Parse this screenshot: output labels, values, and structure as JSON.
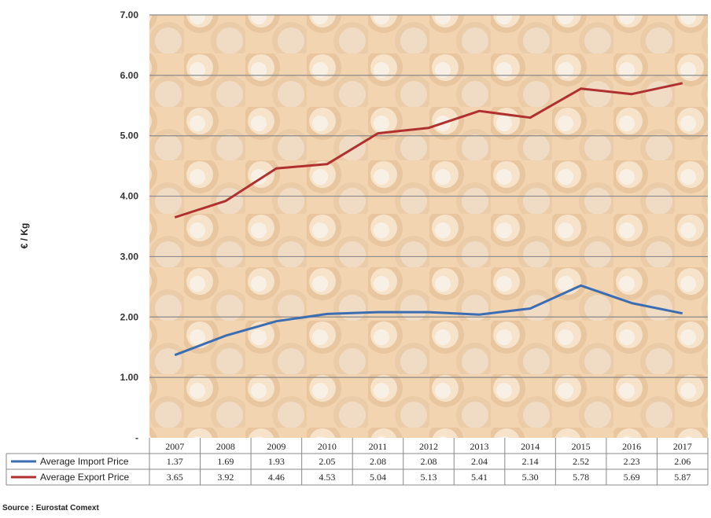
{
  "chart_data": {
    "type": "line",
    "ylabel": "€ / Kg",
    "categories": [
      "2007",
      "2008",
      "2009",
      "2010",
      "2011",
      "2012",
      "2013",
      "2014",
      "2015",
      "2016",
      "2017"
    ],
    "ylim": [
      0,
      7
    ],
    "yticks": [
      "",
      "1.00",
      "2.00",
      "3.00",
      "4.00",
      "5.00",
      "6.00",
      "7.00"
    ],
    "grid": true,
    "legend": "data table below chart",
    "series": [
      {
        "name": "Average Import Price",
        "color": "#3b6db3",
        "values": [
          1.37,
          1.69,
          1.93,
          2.05,
          2.08,
          2.08,
          2.04,
          2.14,
          2.52,
          2.23,
          2.06
        ],
        "labels": [
          "1.37",
          "1.69",
          "1.93",
          "2.05",
          "2.08",
          "2.08",
          "2.04",
          "2.14",
          "2.52",
          "2.23",
          "2.06"
        ]
      },
      {
        "name": "Average Export Price",
        "color": "#b03030",
        "values": [
          3.65,
          3.92,
          4.46,
          4.53,
          5.04,
          5.13,
          5.41,
          5.3,
          5.78,
          5.69,
          5.87
        ],
        "labels": [
          "3.65",
          "3.92",
          "4.46",
          "4.53",
          "5.04",
          "5.13",
          "5.41",
          "5.30",
          "5.78",
          "5.69",
          "5.87"
        ]
      }
    ]
  },
  "source": "Source : Eurostat Comext"
}
